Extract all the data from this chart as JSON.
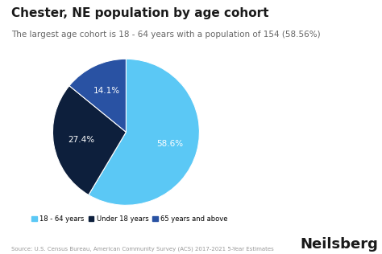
{
  "title": "Chester, NE population by age cohort",
  "subtitle": "The largest age cohort is 18 - 64 years with a population of 154 (58.56%)",
  "slices": [
    58.6,
    27.4,
    14.1
  ],
  "labels": [
    "18 - 64 years",
    "Under 18 years",
    "65 years and above"
  ],
  "colors": [
    "#5BC8F5",
    "#0D1F3C",
    "#2952A3"
  ],
  "legend_colors": [
    "#5BC8F5",
    "#0D1F3C",
    "#2952A3"
  ],
  "source_text": "Source: U.S. Census Bureau, American Community Survey (ACS) 2017-2021 5-Year Estimates",
  "brand": "Neilsberg",
  "background_color": "#ffffff",
  "startangle": 90,
  "pct_labels": [
    "58.6%",
    "27.4%",
    "14.1%"
  ],
  "pct_fontsize": 7.5,
  "title_fontsize": 11,
  "subtitle_fontsize": 7.5
}
